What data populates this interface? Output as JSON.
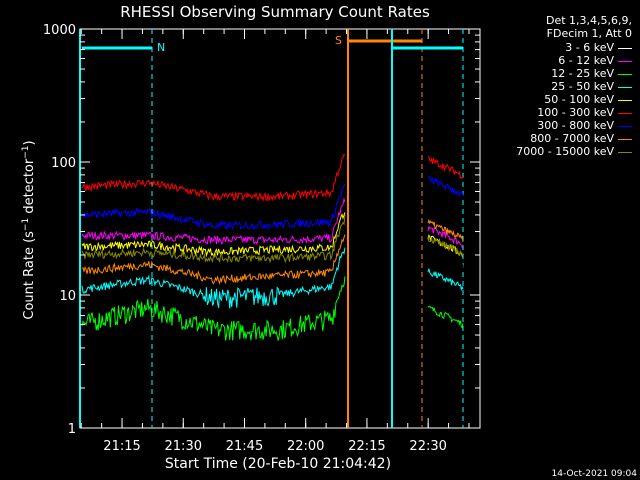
{
  "chart_data": {
    "type": "line",
    "title": "RHESSI Observing Summary Count Rates",
    "xlabel": "Start Time (20-Feb-10 21:04:42)",
    "ylabel": "Count Rate (s⁻¹ detector⁻¹)",
    "ylabel_parts": {
      "pre": "Count Rate (s",
      "sup1": "−1",
      "mid": " detector",
      "sup2": "−1",
      "post": ")"
    },
    "y_scale": "log",
    "ylim": [
      1,
      1000
    ],
    "y_ticks": [
      "1",
      "10",
      "100",
      "1000"
    ],
    "x_range_minutes_after_start": [
      0,
      38
    ],
    "x_ticks": [
      {
        "label": "21:15",
        "minute": 10.3
      },
      {
        "label": "21:30",
        "minute": 25.3
      },
      {
        "label": "21:45",
        "minute": 40.3
      },
      {
        "label": "22:00",
        "minute": 55.3
      },
      {
        "label": "22:15",
        "minute": 70.3
      },
      {
        "label": "22:30",
        "minute": 85.3
      }
    ],
    "x_minutes_span": 98,
    "legend_title": [
      "Det 1,3,4,5,6,9,",
      "FDecim 1, Att 0"
    ],
    "series": [
      {
        "name": "3 - 6 keV",
        "color": "#000000",
        "values": [
          22,
          22,
          21,
          21,
          22,
          22
        ]
      },
      {
        "name": "6 - 12 keV",
        "color": "#ff00ff",
        "values": [
          28,
          28,
          26,
          26,
          27,
          32
        ]
      },
      {
        "name": "12 - 25 keV",
        "color": "#00ff00",
        "values": [
          6,
          8,
          5.5,
          5.5,
          7,
          8
        ]
      },
      {
        "name": "25 - 50 keV",
        "color": "#00ffff",
        "values": [
          11,
          13,
          9.5,
          10,
          12,
          15
        ]
      },
      {
        "name": "50 - 100 keV",
        "color": "#ffff00",
        "values": [
          23,
          24,
          21,
          22,
          23,
          27
        ]
      },
      {
        "name": "100 - 300 keV",
        "color": "#ff0000",
        "values": [
          65,
          70,
          55,
          55,
          60,
          105
        ]
      },
      {
        "name": "300 - 800 keV",
        "color": "#0000ff",
        "values": [
          40,
          42,
          33,
          34,
          36,
          75
        ]
      },
      {
        "name": "800 - 7000 keV",
        "color": "#ff8800",
        "values": [
          15,
          17,
          13,
          14,
          15,
          35
        ]
      },
      {
        "name": "7000 - 15000 keV",
        "color": "#888800",
        "values": [
          20,
          21,
          19,
          19,
          20,
          27
        ]
      }
    ],
    "annotations": [
      {
        "text": "N",
        "color": "#00ffff"
      },
      {
        "text": "S",
        "color": "#ff8800"
      }
    ],
    "footer_date": "14-Oct-2021 09:04"
  }
}
